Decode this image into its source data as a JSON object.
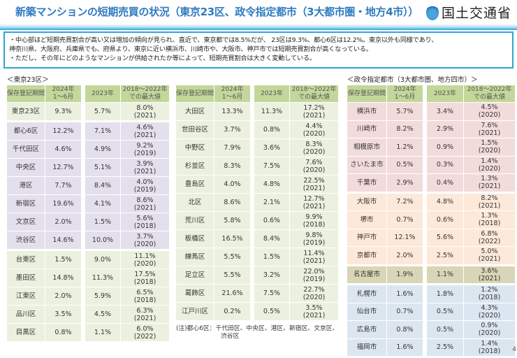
{
  "header": {
    "title": "新築マンションの短期売買の状況（東京23区、政令指定都市（3大都市圏・地方4市））",
    "logo_text": "国土交通省"
  },
  "summary": {
    "lines": [
      "・中心部ほど短期売買割合が高い又は増加の傾向が見られ、直近で、東京都では8.5%だが、 23区は9.3%、都心6区は12.2%。東京以外も同様であり、",
      "神奈川県、大阪府、兵庫県でも、府県より、東京に近い横浜市、川崎市や、大阪市、神戸市では短期売買割合が高くなっている。",
      "・ただし、その年にどのようなマンションが供給されたか等によって、短期売買割合は大きく変動している。"
    ]
  },
  "columns": {
    "period": "保存登記期間",
    "y2024": "2024年 1〜6月",
    "y2023": "2023年",
    "max": "2018〜2022年 での最大値"
  },
  "colors": {
    "header": "#c4d79b",
    "green": "#ebf1de",
    "purple": "#e4dfec",
    "pink": "#f2dcdb",
    "orange": "#fde9d9",
    "olive": "#d9d5b7",
    "blue": "#dce6f1",
    "title": "#2f7bbf"
  },
  "tokyo": {
    "label": "＜東京23区＞",
    "rows": [
      {
        "name": "東京23区",
        "y2024": "9.3%",
        "y2023": "5.7%",
        "max": "8.0%",
        "max_year": "(2021)",
        "group": "green"
      },
      {
        "name": "都心6区",
        "y2024": "12.2%",
        "y2023": "7.1%",
        "max": "4.6%",
        "max_year": "(2021)",
        "group": "purple"
      },
      {
        "name": "千代田区",
        "y2024": "4.6%",
        "y2023": "4.9%",
        "max": "9.2%",
        "max_year": "(2019)",
        "group": "purple"
      },
      {
        "name": "中央区",
        "y2024": "12.7%",
        "y2023": "5.1%",
        "max": "3.9%",
        "max_year": "(2021)",
        "group": "purple"
      },
      {
        "name": "港区",
        "y2024": "7.7%",
        "y2023": "8.4%",
        "max": "4.0%",
        "max_year": "(2019)",
        "group": "purple"
      },
      {
        "name": "新宿区",
        "y2024": "19.6%",
        "y2023": "4.1%",
        "max": "8.6%",
        "max_year": "(2021)",
        "group": "purple"
      },
      {
        "name": "文京区",
        "y2024": "2.0%",
        "y2023": "1.5%",
        "max": "5.6%",
        "max_year": "(2018)",
        "group": "purple"
      },
      {
        "name": "渋谷区",
        "y2024": "14.6%",
        "y2023": "10.0%",
        "max": "3.7%",
        "max_year": "(2020)",
        "group": "purple"
      },
      {
        "name": "台東区",
        "y2024": "1.5%",
        "y2023": "9.0%",
        "max": "11.1%",
        "max_year": "(2020)",
        "group": "green"
      },
      {
        "name": "墨田区",
        "y2024": "14.8%",
        "y2023": "11.3%",
        "max": "17.5%",
        "max_year": "(2018)",
        "group": "green"
      },
      {
        "name": "江東区",
        "y2024": "2.0%",
        "y2023": "5.9%",
        "max": "6.5%",
        "max_year": "(2018)",
        "group": "green"
      },
      {
        "name": "品川区",
        "y2024": "3.5%",
        "y2023": "4.5%",
        "max": "6.3%",
        "max_year": "(2021)",
        "group": "green"
      },
      {
        "name": "目黒区",
        "y2024": "0.8%",
        "y2023": "1.1%",
        "max": "6.0%",
        "max_year": "(2022)",
        "group": "green"
      }
    ]
  },
  "tokyo2": {
    "rows": [
      {
        "name": "大田区",
        "y2024": "13.3%",
        "y2023": "11.3%",
        "max": "17.2%",
        "max_year": "(2021)",
        "group": "green"
      },
      {
        "name": "世田谷区",
        "y2024": "3.7%",
        "y2023": "0.8%",
        "max": "4.4%",
        "max_year": "(2020)",
        "group": "green"
      },
      {
        "name": "中野区",
        "y2024": "7.9%",
        "y2023": "3.6%",
        "max": "8.3%",
        "max_year": "(2020)",
        "group": "green"
      },
      {
        "name": "杉並区",
        "y2024": "8.3%",
        "y2023": "7.5%",
        "max": "7.6%",
        "max_year": "(2020)",
        "group": "green"
      },
      {
        "name": "豊島区",
        "y2024": "4.0%",
        "y2023": "4.8%",
        "max": "22.5%",
        "max_year": "(2021)",
        "group": "green"
      },
      {
        "name": "北区",
        "y2024": "8.6%",
        "y2023": "2.1%",
        "max": "12.7%",
        "max_year": "(2021)",
        "group": "green"
      },
      {
        "name": "荒川区",
        "y2024": "5.8%",
        "y2023": "0.6%",
        "max": "9.9%",
        "max_year": "(2018)",
        "group": "green"
      },
      {
        "name": "板橋区",
        "y2024": "16.5%",
        "y2023": "8.4%",
        "max": "9.8%",
        "max_year": "(2019)",
        "group": "green"
      },
      {
        "name": "練馬区",
        "y2024": "5.5%",
        "y2023": "1.5%",
        "max": "11.4%",
        "max_year": "(2021)",
        "group": "green"
      },
      {
        "name": "足立区",
        "y2024": "5.5%",
        "y2023": "3.2%",
        "max": "22.0%",
        "max_year": "(2019)",
        "group": "green"
      },
      {
        "name": "葛飾区",
        "y2024": "21.6%",
        "y2023": "7.5%",
        "max": "22.7%",
        "max_year": "(2020)",
        "group": "green"
      },
      {
        "name": "江戸川区",
        "y2024": "0.2%",
        "y2023": "0.5%",
        "max": "3.5%",
        "max_year": "(2021)",
        "group": "green"
      }
    ],
    "note_line1": "(注)都心6区：千代田区、中央区、港区、新宿区、文京区、",
    "note_line2": "渋谷区"
  },
  "cities": {
    "label": "＜政令指定都市（3大都市圏、地方四市）＞",
    "rows": [
      {
        "name": "横浜市",
        "y2024": "5.7%",
        "y2023": "3.4%",
        "max": "4.5%",
        "max_year": "(2020)",
        "group": "pink"
      },
      {
        "name": "川崎市",
        "y2024": "8.2%",
        "y2023": "2.9%",
        "max": "7.6%",
        "max_year": "(2021)",
        "group": "pink"
      },
      {
        "name": "相模原市",
        "y2024": "1.2%",
        "y2023": "0.9%",
        "max": "1.5%",
        "max_year": "(2020)",
        "group": "pink"
      },
      {
        "name": "さいたま市",
        "y2024": "0.5%",
        "y2023": "0.3%",
        "max": "1.4%",
        "max_year": "(2020)",
        "group": "pink"
      },
      {
        "name": "千葉市",
        "y2024": "2.9%",
        "y2023": "0.4%",
        "max": "1.3%",
        "max_year": "(2021)",
        "group": "pink"
      },
      {
        "name": "大阪市",
        "y2024": "7.2%",
        "y2023": "4.8%",
        "max": "8.2%",
        "max_year": "(2021)",
        "group": "orange"
      },
      {
        "name": "堺市",
        "y2024": "0.7%",
        "y2023": "0.6%",
        "max": "1.3%",
        "max_year": "(2018)",
        "group": "orange"
      },
      {
        "name": "神戸市",
        "y2024": "12.1%",
        "y2023": "5.6%",
        "max": "6.8%",
        "max_year": "(2022)",
        "group": "orange"
      },
      {
        "name": "京都市",
        "y2024": "2.0%",
        "y2023": "2.5%",
        "max": "5.0%",
        "max_year": "(2021)",
        "group": "orange"
      },
      {
        "name": "名古屋市",
        "y2024": "1.9%",
        "y2023": "1.1%",
        "max": "3.6%",
        "max_year": "(2021)",
        "group": "olive"
      },
      {
        "name": "札幌市",
        "y2024": "1.6%",
        "y2023": "1.8%",
        "max": "1.2%",
        "max_year": "(2018)",
        "group": "blue"
      },
      {
        "name": "仙台市",
        "y2024": "0.7%",
        "y2023": "0.5%",
        "max": "4.3%",
        "max_year": "(2020)",
        "group": "blue"
      },
      {
        "name": "広島市",
        "y2024": "0.8%",
        "y2023": "0.5%",
        "max": "0.9%",
        "max_year": "(2020)",
        "group": "blue"
      },
      {
        "name": "福岡市",
        "y2024": "1.6%",
        "y2023": "2.5%",
        "max": "1.4%",
        "max_year": "(2018)",
        "group": "blue"
      }
    ]
  },
  "page_number": "4"
}
